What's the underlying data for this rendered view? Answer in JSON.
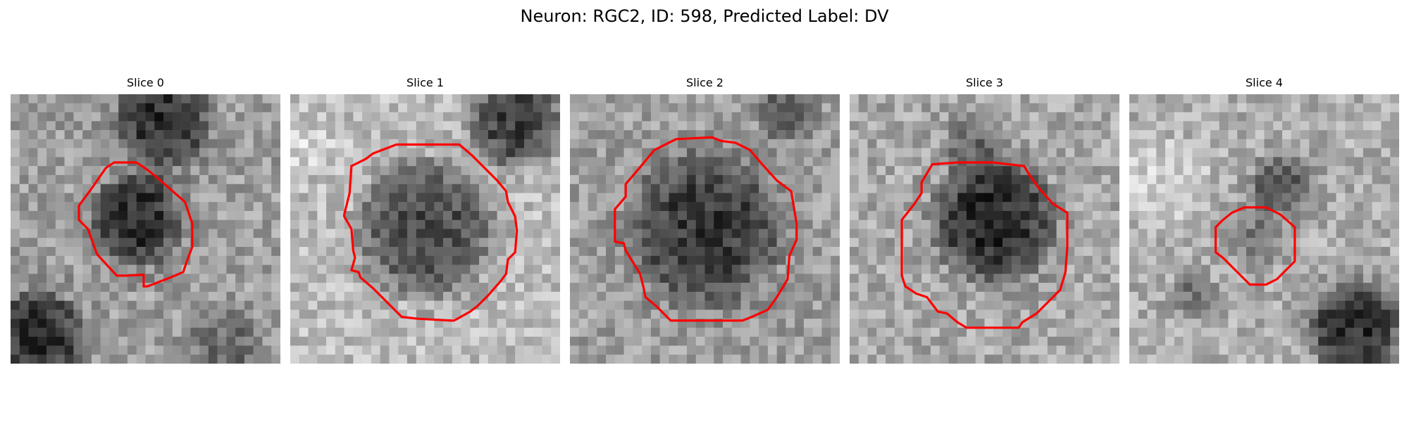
{
  "figure": {
    "title": "Neuron: RGC2, ID: 598, Predicted Label: DV"
  },
  "slices": [
    {
      "title": "Slice 0"
    },
    {
      "title": "Slice 1"
    },
    {
      "title": "Slice 2"
    },
    {
      "title": "Slice 3"
    },
    {
      "title": "Slice 4"
    }
  ],
  "contour_color": "#ff0000",
  "colormap": "gray"
}
